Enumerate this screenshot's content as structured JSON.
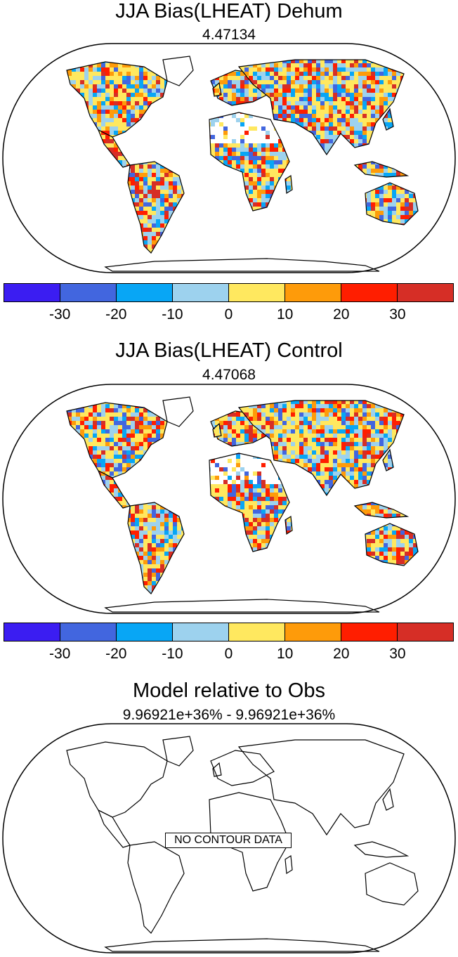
{
  "panels": [
    {
      "title": "JJA Bias(LHEAT) Dehum",
      "subtitle": "4.47134",
      "has_data": true
    },
    {
      "title": "JJA Bias(LHEAT) Control",
      "subtitle": "4.47068",
      "has_data": true
    },
    {
      "title": "Model relative to Obs",
      "subtitle": "9.96921e+36% - 9.96921e+36%",
      "has_data": false,
      "no_data_label": "NO CONTOUR DATA"
    }
  ],
  "colorbar": {
    "colors": [
      "#3b1df2",
      "#4266df",
      "#08a6f5",
      "#9dd2ee",
      "#ffe85f",
      "#fe9b0a",
      "#ff1e00",
      "#d62e26"
    ],
    "labels": [
      "-30",
      "-20",
      "-10",
      "0",
      "10",
      "20",
      "30"
    ]
  }
}
